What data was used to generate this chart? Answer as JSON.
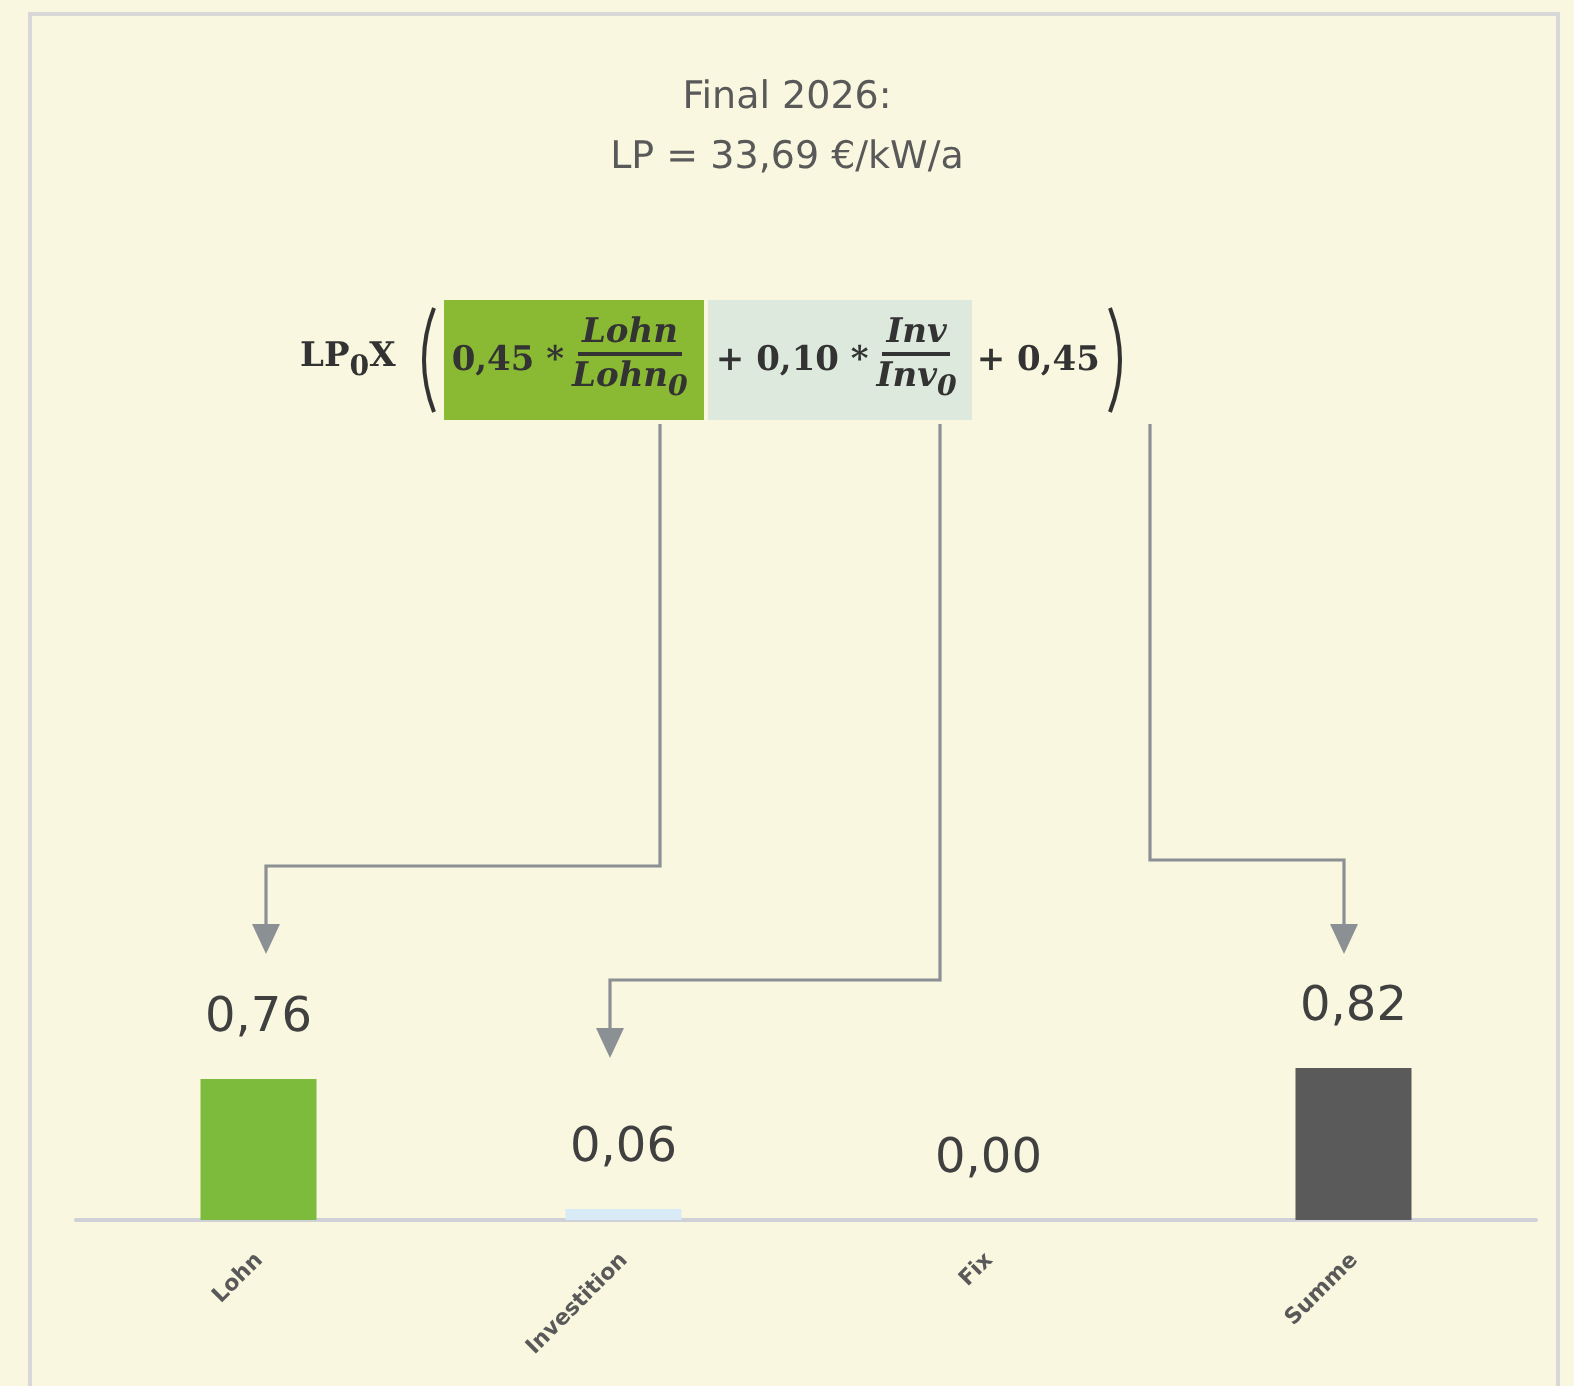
{
  "chart_data": {
    "type": "bar",
    "title": "Final 2026:\nLP = 33,69 €/kW/a",
    "categories": [
      "Lohn",
      "Investition",
      "Fix",
      "Summe"
    ],
    "values": [
      0.76,
      0.06,
      0.0,
      0.82
    ],
    "colors": [
      "#7dbb3c",
      "#d9eaf7",
      "#a6a6a6",
      "#5a5a5a"
    ],
    "value_labels": [
      "0,76",
      "0,06",
      "0,00",
      "0,82"
    ],
    "annotations": [
      "LP$_{0}$X",
      "0,45 *",
      "Lohn",
      "Lohn$_{0}$",
      "+ 0,10 *",
      "Inv",
      "Inv$_{0}$",
      "+ 0,45"
    ],
    "grid": false
  }
}
